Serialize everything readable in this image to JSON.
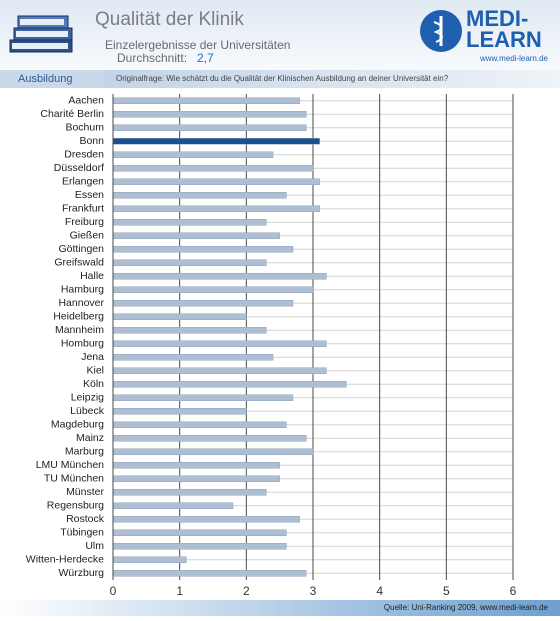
{
  "header": {
    "title": "Qualität der Klinik",
    "subtitle": "Einzelergebnisse der Universitäten",
    "average_label": "Durchschnitt:",
    "average": "2,7",
    "logo_line1": "MEDI-",
    "logo_line2": "LEARN",
    "logo_url": "www.medi-learn.de",
    "section": "Ausbildung",
    "question": "Originalfrage: Wie schätzt du die Qualität der Klinischen Ausbildung an deiner Universität ein?",
    "source": "Quelle: Uni-Ranking 2009, www.medi-learn.de"
  },
  "chart_data": {
    "type": "barh",
    "categories": [
      "Aachen",
      "Charité Berlin",
      "Bochum",
      "Bonn",
      "Dresden",
      "Düsseldorf",
      "Erlangen",
      "Essen",
      "Frankfurt",
      "Freiburg",
      "Gießen",
      "Göttingen",
      "Greifswald",
      "Halle",
      "Hamburg",
      "Hannover",
      "Heidelberg",
      "Mannheim",
      "Homburg",
      "Jena",
      "Kiel",
      "Köln",
      "Leipzig",
      "Lübeck",
      "Magdeburg",
      "Mainz",
      "Marburg",
      "LMU München",
      "TU München",
      "Münster",
      "Regensburg",
      "Rostock",
      "Tübingen",
      "Ulm",
      "Witten-Herdecke",
      "Würzburg"
    ],
    "values": [
      2.8,
      2.9,
      2.9,
      3.1,
      2.4,
      3.0,
      3.1,
      2.6,
      3.1,
      2.3,
      2.5,
      2.7,
      2.3,
      3.2,
      3.0,
      2.7,
      2.0,
      2.3,
      3.2,
      2.4,
      3.2,
      3.5,
      2.7,
      2.0,
      2.6,
      2.9,
      3.0,
      2.5,
      2.5,
      2.3,
      1.8,
      2.8,
      2.6,
      2.6,
      1.1,
      2.9
    ],
    "colors": [
      "#aebfd4",
      "#aebfd4",
      "#aebfd4",
      "#1d4f8f",
      "#aebfd4",
      "#aebfd4",
      "#aebfd4",
      "#aebfd4",
      "#aebfd4",
      "#aebfd4",
      "#aebfd4",
      "#aebfd4",
      "#aebfd4",
      "#aebfd4",
      "#aebfd4",
      "#aebfd4",
      "#aebfd4",
      "#aebfd4",
      "#aebfd4",
      "#aebfd4",
      "#aebfd4",
      "#aebfd4",
      "#aebfd4",
      "#aebfd4",
      "#aebfd4",
      "#aebfd4",
      "#aebfd4",
      "#aebfd4",
      "#aebfd4",
      "#aebfd4",
      "#aebfd4",
      "#aebfd4",
      "#aebfd4",
      "#aebfd4",
      "#aebfd4",
      "#aebfd4"
    ],
    "xlim": [
      0,
      6
    ],
    "xticks": [
      0,
      1,
      2,
      3,
      4,
      5,
      6
    ],
    "grid": true
  }
}
